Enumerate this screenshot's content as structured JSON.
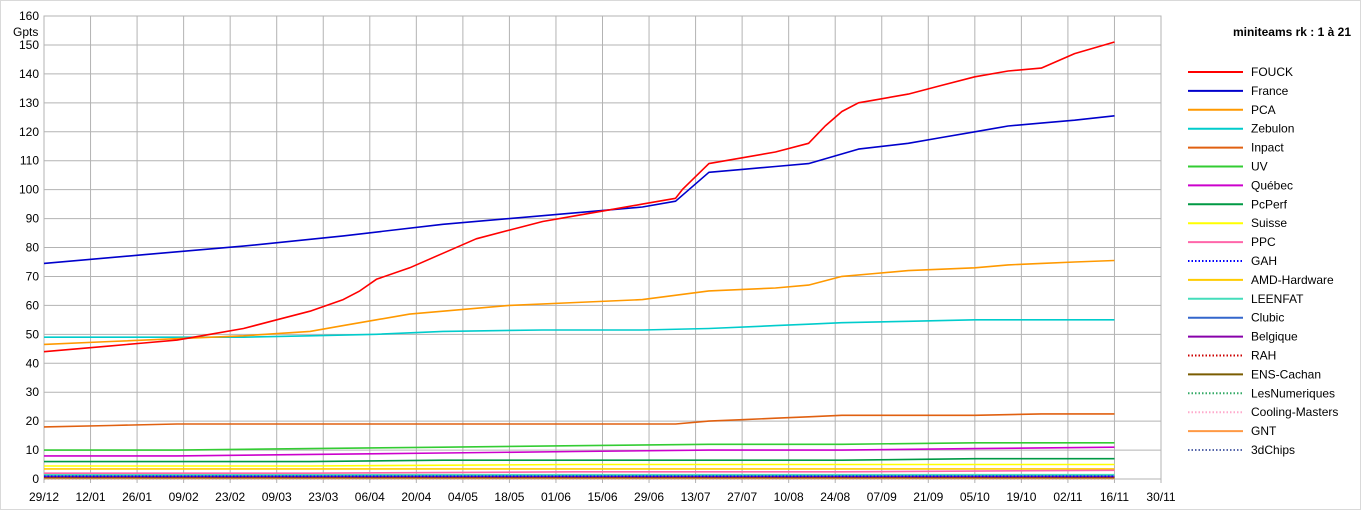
{
  "chart_data": {
    "type": "line",
    "title": "miniteams rk : 1 à 21",
    "ylabel": "Gpts",
    "xlabel": "",
    "ylim": [
      0,
      160
    ],
    "yticks": [
      0,
      10,
      20,
      30,
      40,
      50,
      60,
      70,
      80,
      90,
      100,
      110,
      120,
      130,
      140,
      150,
      160
    ],
    "x_tick_labels": [
      "29/12",
      "12/01",
      "26/01",
      "09/02",
      "23/02",
      "09/03",
      "23/03",
      "06/04",
      "20/04",
      "04/05",
      "18/05",
      "01/06",
      "15/06",
      "29/06",
      "13/07",
      "27/07",
      "10/08",
      "24/08",
      "07/09",
      "21/09",
      "05/10",
      "19/10",
      "02/11",
      "16/11",
      "30/11"
    ],
    "x_range_days": [
      0,
      336
    ],
    "grid": true,
    "legend_position": "right",
    "series": [
      {
        "name": "FOUCK",
        "color": "#ff0000",
        "style": "solid",
        "points": [
          [
            0,
            44
          ],
          [
            10,
            45
          ],
          [
            20,
            46
          ],
          [
            30,
            47
          ],
          [
            40,
            48
          ],
          [
            50,
            50
          ],
          [
            60,
            52
          ],
          [
            70,
            55
          ],
          [
            80,
            58
          ],
          [
            90,
            62
          ],
          [
            95,
            65
          ],
          [
            100,
            69
          ],
          [
            110,
            73
          ],
          [
            120,
            78
          ],
          [
            130,
            83
          ],
          [
            140,
            86
          ],
          [
            150,
            89
          ],
          [
            160,
            91
          ],
          [
            170,
            93
          ],
          [
            180,
            95
          ],
          [
            190,
            97
          ],
          [
            192,
            100
          ],
          [
            200,
            109
          ],
          [
            210,
            111
          ],
          [
            220,
            113
          ],
          [
            230,
            116
          ],
          [
            235,
            122
          ],
          [
            240,
            127
          ],
          [
            245,
            130
          ],
          [
            250,
            131
          ],
          [
            260,
            133
          ],
          [
            270,
            136
          ],
          [
            280,
            139
          ],
          [
            290,
            141
          ],
          [
            300,
            142
          ],
          [
            310,
            147
          ],
          [
            322,
            151
          ]
        ]
      },
      {
        "name": "France",
        "color": "#0000cc",
        "style": "solid",
        "points": [
          [
            0,
            74.5
          ],
          [
            30,
            77.5
          ],
          [
            60,
            80.5
          ],
          [
            90,
            84
          ],
          [
            120,
            88
          ],
          [
            150,
            91
          ],
          [
            180,
            94
          ],
          [
            190,
            96
          ],
          [
            200,
            106
          ],
          [
            210,
            107
          ],
          [
            220,
            108
          ],
          [
            230,
            109
          ],
          [
            245,
            114
          ],
          [
            260,
            116
          ],
          [
            270,
            118
          ],
          [
            280,
            120
          ],
          [
            290,
            122
          ],
          [
            300,
            123
          ],
          [
            310,
            124
          ],
          [
            322,
            125.5
          ]
        ]
      },
      {
        "name": "PCA",
        "color": "#ff9900",
        "style": "solid",
        "points": [
          [
            0,
            46.5
          ],
          [
            20,
            47.5
          ],
          [
            40,
            48.5
          ],
          [
            60,
            49.5
          ],
          [
            80,
            51
          ],
          [
            90,
            53
          ],
          [
            100,
            55
          ],
          [
            110,
            57
          ],
          [
            120,
            58
          ],
          [
            140,
            60
          ],
          [
            160,
            61
          ],
          [
            180,
            62
          ],
          [
            200,
            65
          ],
          [
            220,
            66
          ],
          [
            230,
            67
          ],
          [
            240,
            70
          ],
          [
            250,
            71
          ],
          [
            260,
            72
          ],
          [
            270,
            72.5
          ],
          [
            280,
            73
          ],
          [
            290,
            74
          ],
          [
            300,
            74.5
          ],
          [
            310,
            75
          ],
          [
            322,
            75.5
          ]
        ]
      },
      {
        "name": "Zebulon",
        "color": "#00cccc",
        "style": "solid",
        "points": [
          [
            0,
            49
          ],
          [
            30,
            49
          ],
          [
            60,
            49
          ],
          [
            80,
            49.5
          ],
          [
            100,
            50
          ],
          [
            120,
            51
          ],
          [
            150,
            51.5
          ],
          [
            180,
            51.5
          ],
          [
            200,
            52
          ],
          [
            220,
            53
          ],
          [
            230,
            53.5
          ],
          [
            240,
            54
          ],
          [
            260,
            54.5
          ],
          [
            280,
            55
          ],
          [
            322,
            55
          ]
        ]
      },
      {
        "name": "Inpact",
        "color": "#e06010",
        "style": "solid",
        "points": [
          [
            0,
            18
          ],
          [
            20,
            18.5
          ],
          [
            40,
            19
          ],
          [
            80,
            19
          ],
          [
            120,
            19
          ],
          [
            160,
            19
          ],
          [
            190,
            19
          ],
          [
            200,
            20
          ],
          [
            210,
            20.5
          ],
          [
            220,
            21
          ],
          [
            230,
            21.5
          ],
          [
            240,
            22
          ],
          [
            260,
            22
          ],
          [
            280,
            22
          ],
          [
            300,
            22.5
          ],
          [
            322,
            22.5
          ]
        ]
      },
      {
        "name": "UV",
        "color": "#33cc33",
        "style": "solid",
        "points": [
          [
            0,
            10
          ],
          [
            40,
            10
          ],
          [
            80,
            10.5
          ],
          [
            120,
            11
          ],
          [
            160,
            11.5
          ],
          [
            200,
            12
          ],
          [
            240,
            12
          ],
          [
            280,
            12.5
          ],
          [
            322,
            12.5
          ]
        ]
      },
      {
        "name": "Québec",
        "color": "#cc00cc",
        "style": "solid",
        "points": [
          [
            0,
            8
          ],
          [
            40,
            8
          ],
          [
            80,
            8.5
          ],
          [
            120,
            9
          ],
          [
            160,
            9.5
          ],
          [
            200,
            10
          ],
          [
            240,
            10
          ],
          [
            280,
            10.5
          ],
          [
            322,
            11
          ]
        ]
      },
      {
        "name": "PcPerf",
        "color": "#009944",
        "style": "solid",
        "points": [
          [
            0,
            6
          ],
          [
            80,
            6
          ],
          [
            120,
            6.5
          ],
          [
            160,
            6.5
          ],
          [
            200,
            6.5
          ],
          [
            240,
            6.5
          ],
          [
            280,
            7
          ],
          [
            322,
            7
          ]
        ]
      },
      {
        "name": "Suisse",
        "color": "#ffff00",
        "style": "solid",
        "points": [
          [
            0,
            4.5
          ],
          [
            80,
            4.5
          ],
          [
            160,
            5
          ],
          [
            240,
            5
          ],
          [
            322,
            5
          ]
        ]
      },
      {
        "name": "PPC",
        "color": "#ff66aa",
        "style": "solid",
        "points": [
          [
            0,
            2
          ],
          [
            80,
            2
          ],
          [
            160,
            2.5
          ],
          [
            240,
            2.5
          ],
          [
            322,
            3
          ]
        ]
      },
      {
        "name": "GAH",
        "color": "#0000ff",
        "style": "dotted",
        "points": [
          [
            0,
            1
          ],
          [
            322,
            1
          ]
        ]
      },
      {
        "name": "AMD-Hardware",
        "color": "#ffcc00",
        "style": "solid",
        "points": [
          [
            0,
            3.5
          ],
          [
            322,
            3.5
          ]
        ]
      },
      {
        "name": "LEENFAT",
        "color": "#44ddbb",
        "style": "solid",
        "points": [
          [
            0,
            1.5
          ],
          [
            322,
            1.5
          ]
        ]
      },
      {
        "name": "Clubic",
        "color": "#3366cc",
        "style": "solid",
        "points": [
          [
            0,
            1.2
          ],
          [
            322,
            1.2
          ]
        ]
      },
      {
        "name": "Belgique",
        "color": "#8800aa",
        "style": "solid",
        "points": [
          [
            0,
            0.9
          ],
          [
            322,
            0.9
          ]
        ]
      },
      {
        "name": "RAH",
        "color": "#cc0000",
        "style": "dotted",
        "points": [
          [
            0,
            0.7
          ],
          [
            322,
            0.7
          ]
        ]
      },
      {
        "name": "ENS-Cachan",
        "color": "#7a5c00",
        "style": "solid",
        "points": [
          [
            0,
            0.5
          ],
          [
            322,
            0.5
          ]
        ]
      },
      {
        "name": "LesNumeriques",
        "color": "#33aa66",
        "style": "dotted",
        "points": [
          [
            0,
            0.4
          ],
          [
            322,
            0.4
          ]
        ]
      },
      {
        "name": "Cooling-Masters",
        "color": "#ffaacc",
        "style": "dotted",
        "points": [
          [
            0,
            0.3
          ],
          [
            322,
            0.3
          ]
        ]
      },
      {
        "name": "GNT",
        "color": "#ff9944",
        "style": "solid",
        "points": [
          [
            0,
            0.2
          ],
          [
            322,
            0.2
          ]
        ]
      },
      {
        "name": "3dChips",
        "color": "#5566aa",
        "style": "dotted",
        "points": [
          [
            0,
            0.1
          ],
          [
            322,
            0.1
          ]
        ]
      }
    ]
  }
}
